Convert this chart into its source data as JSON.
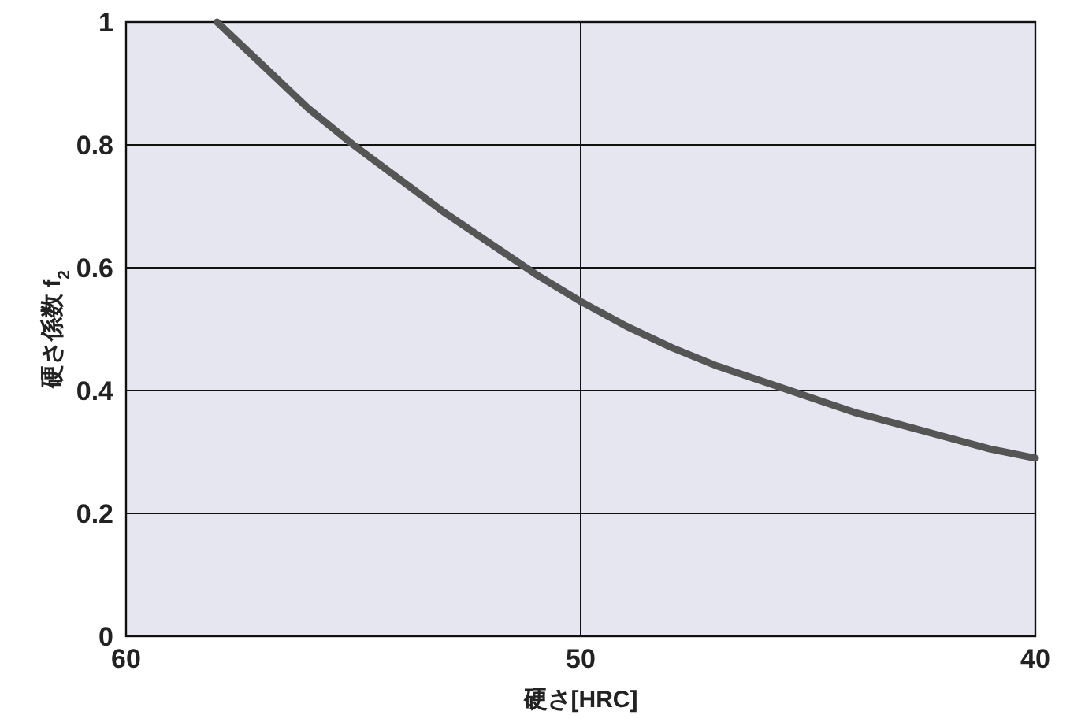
{
  "chart_data": {
    "type": "line",
    "xlabel": "硬さ[HRC]",
    "ylabel": "硬さ係数 f$_{2}$",
    "x": [
      58,
      57,
      56,
      55,
      54,
      53,
      52,
      51,
      50,
      49,
      48,
      47,
      46,
      45,
      44,
      43,
      42,
      41,
      40
    ],
    "series": [
      {
        "color": "#555555",
        "values": [
          1.0,
          0.93,
          0.86,
          0.8,
          0.745,
          0.69,
          0.64,
          0.59,
          0.545,
          0.505,
          0.47,
          0.44,
          0.415,
          0.39,
          0.365,
          0.345,
          0.325,
          0.305,
          0.29
        ]
      }
    ],
    "xlim": [
      60,
      40
    ],
    "xticks": [
      60,
      50,
      40
    ],
    "ylim": [
      0,
      1
    ],
    "yticks": [
      0,
      0.2,
      0.4,
      0.6,
      0.8,
      1
    ],
    "grid": true,
    "marker": "none",
    "line_style": "solid"
  }
}
